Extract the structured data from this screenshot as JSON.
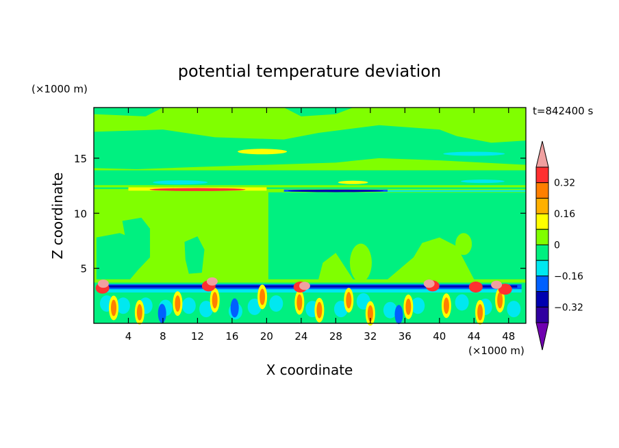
{
  "chart_data": {
    "type": "heatmap",
    "title": "potential temperature deviation",
    "xlabel": "X coordinate",
    "ylabel": "Z coordinate",
    "x_unit": "(×1000 m)",
    "y_unit": "(×1000 m)",
    "time_label": "t=842400 s",
    "xlim": [
      0,
      50
    ],
    "ylim": [
      0,
      19.6
    ],
    "x_ticks": [
      4,
      8,
      12,
      16,
      20,
      24,
      28,
      32,
      36,
      40,
      44,
      48
    ],
    "y_ticks": [
      5,
      10,
      15
    ],
    "colorbar": {
      "levels": [
        -0.4,
        -0.32,
        -0.24,
        -0.16,
        -0.08,
        0,
        0.08,
        0.16,
        0.24,
        0.32,
        0.4
      ],
      "labeled_levels": [
        0.32,
        0.16,
        0,
        -0.16,
        -0.32
      ],
      "colors_high_to_low": [
        "#f0a0a0",
        "#ff3030",
        "#ff7f00",
        "#ffb000",
        "#ffff00",
        "#80ff00",
        "#00f080",
        "#00e8f0",
        "#0060ff",
        "#0000b0",
        "#3000a0",
        "#7000b0"
      ],
      "extend": "both"
    },
    "background_color": "#80ff00"
  }
}
